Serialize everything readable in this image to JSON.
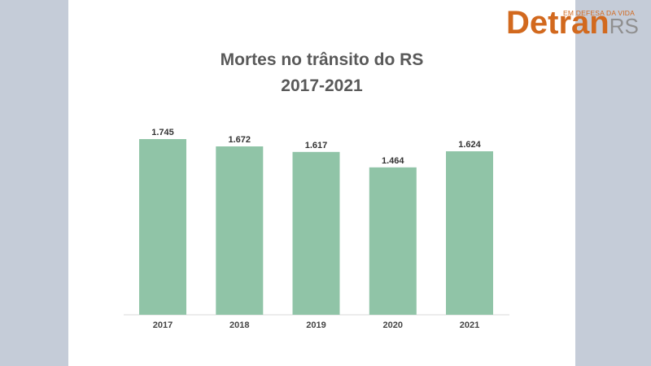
{
  "logo": {
    "tagline": "EM DEFESA DA VIDA",
    "word_main": "Detran",
    "word_suffix": "RS",
    "color_main": "#d2691e",
    "color_suffix": "#8f8f8f"
  },
  "colors": {
    "background_side": "#c5ccd8",
    "panel": "#ffffff",
    "bar": "#90c4a7"
  },
  "chart_data": {
    "type": "bar",
    "title": "Mortes no trânsito do RS",
    "subtitle": "2017-2021",
    "categories": [
      "2017",
      "2018",
      "2019",
      "2020",
      "2021"
    ],
    "values": [
      1745,
      1672,
      1617,
      1464,
      1624
    ],
    "value_labels": [
      "1.745",
      "1.672",
      "1.617",
      "1.464",
      "1.624"
    ],
    "xlabel": "",
    "ylabel": "",
    "ylim": [
      0,
      1800
    ],
    "grid": false,
    "legend": "none"
  }
}
